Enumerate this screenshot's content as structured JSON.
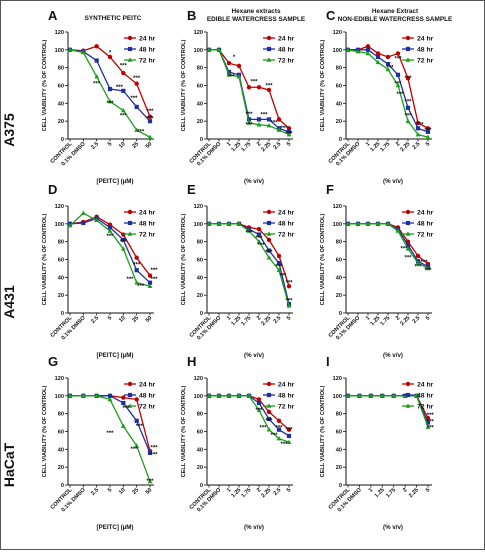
{
  "row_labels": [
    "A375",
    "A431",
    "HaCaT"
  ],
  "colors": {
    "24 hr": "#c00000",
    "48 hr": "#1f2f9f",
    "72 hr": "#1a9f1a"
  },
  "chart_data": [
    {
      "id": "A",
      "type": "line",
      "row": 0,
      "col": 0,
      "letter": "A",
      "title": "SYNTHETIC PEITC",
      "subtitle": "",
      "ylabel": "CELL VIABILITY (% OF CONTROL)",
      "xlabel": "[PEITC] (µM)",
      "ylim": [
        0,
        120
      ],
      "yticks": [
        0,
        20,
        40,
        60,
        80,
        100,
        120
      ],
      "categories": [
        "CONTROL",
        "0.1% DMSO",
        "2.5",
        "5",
        "10",
        "25",
        "50"
      ],
      "series": [
        {
          "name": "24 hr",
          "marker": "circle",
          "values": [
            100,
            99,
            104,
            92,
            74,
            62,
            25
          ]
        },
        {
          "name": "48 hr",
          "marker": "square",
          "values": [
            100,
            98,
            88,
            56,
            54,
            36,
            20
          ]
        },
        {
          "name": "72 hr",
          "marker": "triangle",
          "values": [
            100,
            97,
            70,
            42,
            32,
            10,
            2
          ]
        }
      ],
      "annotations": [
        {
          "label": "*",
          "x": 3,
          "y": 95
        },
        {
          "label": "***",
          "x": 4,
          "y": 80
        },
        {
          "label": "***",
          "x": 5,
          "y": 66
        },
        {
          "label": "***",
          "x": 6,
          "y": 29
        },
        {
          "label": "***",
          "x": 2,
          "y": 60
        },
        {
          "label": "***",
          "x": 3.7,
          "y": 56
        },
        {
          "label": "***",
          "x": 4.8,
          "y": 44
        },
        {
          "label": "***",
          "x": 6,
          "y": 21
        },
        {
          "label": "***",
          "x": 3,
          "y": 38
        },
        {
          "label": "***",
          "x": 4,
          "y": 24
        },
        {
          "label": "***",
          "x": 5.3,
          "y": 6
        }
      ]
    },
    {
      "id": "B",
      "type": "line",
      "row": 0,
      "col": 1,
      "letter": "B",
      "title": "Hexane extracts",
      "subtitle": "EDIBLE WATERCRESS SAMPLE",
      "ylabel": "CELL VIABILITY (% OF CONTROL)",
      "xlabel": "(% v/v)",
      "ylim": [
        0,
        120
      ],
      "yticks": [
        0,
        20,
        40,
        60,
        80,
        100,
        120
      ],
      "categories": [
        "CONTROL",
        "0.1% DMSO",
        "1",
        "1.25",
        "1.75",
        "2",
        "2.25",
        "2.5",
        "5"
      ],
      "series": [
        {
          "name": "24 hr",
          "marker": "circle",
          "values": [
            100,
            100,
            85,
            82,
            58,
            58,
            55,
            22,
            12
          ]
        },
        {
          "name": "48 hr",
          "marker": "square",
          "values": [
            100,
            100,
            75,
            72,
            22,
            22,
            22,
            12,
            8
          ]
        },
        {
          "name": "72 hr",
          "marker": "triangle",
          "values": [
            100,
            100,
            72,
            70,
            18,
            16,
            15,
            10,
            5
          ]
        }
      ],
      "annotations": [
        {
          "label": "*",
          "x": 2.5,
          "y": 90
        },
        {
          "label": "***",
          "x": 4.5,
          "y": 62
        },
        {
          "label": "***",
          "x": 6,
          "y": 58
        },
        {
          "label": "***",
          "x": 2.2,
          "y": 68
        },
        {
          "label": "***",
          "x": 4,
          "y": 26
        },
        {
          "label": "***",
          "x": 5.5,
          "y": 25
        },
        {
          "label": "***",
          "x": 4,
          "y": 14
        },
        {
          "label": "***",
          "x": 6.5,
          "y": 16
        },
        {
          "label": "***",
          "x": 7.5,
          "y": 10
        },
        {
          "label": "***",
          "x": 8,
          "y": 4
        }
      ]
    },
    {
      "id": "C",
      "type": "line",
      "row": 0,
      "col": 2,
      "letter": "C",
      "title": "Hexane Extract",
      "subtitle": "NON-EDIBLE WATERCRESS SAMPLE",
      "ylabel": "CELL VIABILITY (% OF CONTROL)",
      "xlabel": "(% v/v)",
      "ylim": [
        0,
        120
      ],
      "yticks": [
        0,
        20,
        40,
        60,
        80,
        100,
        120
      ],
      "categories": [
        "CONTROL",
        "0.1% DMSO",
        "1",
        "1.25",
        "1.75",
        "2",
        "2.25",
        "2.5",
        "5"
      ],
      "series": [
        {
          "name": "24 hr",
          "marker": "circle",
          "values": [
            100,
            100,
            104,
            96,
            92,
            96,
            68,
            18,
            12
          ]
        },
        {
          "name": "48 hr",
          "marker": "square",
          "values": [
            100,
            100,
            100,
            92,
            84,
            72,
            35,
            12,
            8
          ]
        },
        {
          "name": "72 hr",
          "marker": "triangle",
          "values": [
            100,
            98,
            96,
            86,
            78,
            60,
            20,
            5,
            2
          ]
        }
      ],
      "annotations": [
        {
          "label": "***",
          "x": 5,
          "y": 88
        },
        {
          "label": "***",
          "x": 6,
          "y": 66
        },
        {
          "label": "***",
          "x": 4.2,
          "y": 78
        },
        {
          "label": "***",
          "x": 5,
          "y": 60
        },
        {
          "label": "***",
          "x": 6,
          "y": 40
        },
        {
          "label": "***",
          "x": 5.2,
          "y": 48
        },
        {
          "label": "***",
          "x": 6,
          "y": 24
        },
        {
          "label": "***",
          "x": 7.2,
          "y": 14
        },
        {
          "label": "***",
          "x": 8,
          "y": 8
        }
      ]
    },
    {
      "id": "D",
      "type": "line",
      "row": 1,
      "col": 0,
      "letter": "D",
      "title": "",
      "subtitle": "",
      "ylabel": "CELL VIABILITY (% OF CONTROL)",
      "xlabel": "[PEITC] (µM)",
      "ylim": [
        0,
        120
      ],
      "yticks": [
        0,
        20,
        40,
        60,
        80,
        100,
        120
      ],
      "categories": [
        "CONTROL",
        "0.1% DMSO",
        "2.5",
        "5",
        "10",
        "25",
        "50"
      ],
      "series": [
        {
          "name": "24 hr",
          "marker": "circle",
          "values": [
            100,
            102,
            108,
            99,
            88,
            62,
            42
          ]
        },
        {
          "name": "48 hr",
          "marker": "square",
          "values": [
            100,
            101,
            106,
            96,
            82,
            48,
            34
          ]
        },
        {
          "name": "72 hr",
          "marker": "triangle",
          "values": [
            98,
            112,
            104,
            92,
            72,
            34,
            30
          ]
        }
      ],
      "annotations": [
        {
          "label": "***",
          "x": 6.3,
          "y": 46
        },
        {
          "label": "***",
          "x": 6.3,
          "y": 36
        },
        {
          "label": "***",
          "x": 5,
          "y": 52
        },
        {
          "label": "***",
          "x": 4,
          "y": 78
        },
        {
          "label": "***",
          "x": 3,
          "y": 84
        },
        {
          "label": "***",
          "x": 4.5,
          "y": 36
        },
        {
          "label": "***",
          "x": 5.3,
          "y": 28
        }
      ]
    },
    {
      "id": "E",
      "type": "line",
      "row": 1,
      "col": 1,
      "letter": "E",
      "title": "",
      "subtitle": "",
      "ylabel": "CELL VIABILITY (% OF CONTROL)",
      "xlabel": "(% v/v)",
      "ylim": [
        0,
        120
      ],
      "yticks": [
        0,
        20,
        40,
        60,
        80,
        100,
        120
      ],
      "categories": [
        "CONTROL",
        "0.1% DMSO",
        "1",
        "1.25",
        "1.75",
        "2",
        "2.25",
        "2.5",
        "5"
      ],
      "series": [
        {
          "name": "24 hr",
          "marker": "circle",
          "values": [
            100,
            100,
            100,
            100,
            96,
            94,
            82,
            64,
            30
          ]
        },
        {
          "name": "48 hr",
          "marker": "square",
          "values": [
            100,
            100,
            100,
            100,
            94,
            88,
            70,
            56,
            10
          ]
        },
        {
          "name": "72 hr",
          "marker": "triangle",
          "values": [
            100,
            100,
            100,
            100,
            92,
            80,
            62,
            48,
            8
          ]
        }
      ],
      "annotations": [
        {
          "label": "***",
          "x": 4,
          "y": 88
        },
        {
          "label": "***",
          "x": 5,
          "y": 82
        },
        {
          "label": "***",
          "x": 5.2,
          "y": 74
        },
        {
          "label": "***",
          "x": 6,
          "y": 66
        },
        {
          "label": "***",
          "x": 7,
          "y": 50
        },
        {
          "label": "***",
          "x": 8,
          "y": 32
        },
        {
          "label": "***",
          "x": 8,
          "y": 12
        },
        {
          "label": "***",
          "x": 7.4,
          "y": 40
        }
      ]
    },
    {
      "id": "F",
      "type": "line",
      "row": 1,
      "col": 2,
      "letter": "F",
      "title": "",
      "subtitle": "",
      "ylabel": "CELL VIABILITY (% OF CONTROL)",
      "xlabel": "(% v/v)",
      "ylim": [
        0,
        120
      ],
      "yticks": [
        0,
        20,
        40,
        60,
        80,
        100,
        120
      ],
      "categories": [
        "CONTROL",
        "0.1% DMSO",
        "1",
        "1.25",
        "1.75",
        "2",
        "2.25",
        "2.5",
        "5"
      ],
      "series": [
        {
          "name": "24 hr",
          "marker": "circle",
          "values": [
            100,
            100,
            100,
            100,
            100,
            96,
            80,
            64,
            55
          ]
        },
        {
          "name": "48 hr",
          "marker": "square",
          "values": [
            100,
            100,
            100,
            100,
            100,
            94,
            76,
            58,
            52
          ]
        },
        {
          "name": "72 hr",
          "marker": "triangle",
          "values": [
            100,
            100,
            100,
            100,
            100,
            92,
            72,
            56,
            50
          ]
        }
      ],
      "annotations": [
        {
          "label": "***",
          "x": 5.6,
          "y": 70
        },
        {
          "label": "***",
          "x": 6,
          "y": 60
        },
        {
          "label": "***",
          "x": 7,
          "y": 50
        },
        {
          "label": "***",
          "x": 7.6,
          "y": 55
        },
        {
          "label": "***",
          "x": 8,
          "y": 46
        }
      ]
    },
    {
      "id": "G",
      "type": "line",
      "row": 2,
      "col": 0,
      "letter": "G",
      "title": "",
      "subtitle": "",
      "ylabel": "CELL VIABILITY (% OF CONTROL)",
      "xlabel": "[PEITC] (µM)",
      "ylim": [
        0,
        120
      ],
      "yticks": [
        0,
        20,
        40,
        60,
        80,
        100,
        120
      ],
      "categories": [
        "CONTROL",
        "0.1% DMSO",
        "2.5",
        "5",
        "10",
        "25",
        "50"
      ],
      "series": [
        {
          "name": "24 hr",
          "marker": "circle",
          "values": [
            100,
            100,
            100,
            100,
            98,
            96,
            38
          ]
        },
        {
          "name": "48 hr",
          "marker": "square",
          "values": [
            100,
            100,
            100,
            100,
            92,
            72,
            36
          ]
        },
        {
          "name": "72 hr",
          "marker": "triangle",
          "values": [
            100,
            100,
            100,
            96,
            66,
            44,
            4
          ]
        }
      ],
      "annotations": [
        {
          "label": "***",
          "x": 4.2,
          "y": 84
        },
        {
          "label": "***",
          "x": 5.2,
          "y": 64
        },
        {
          "label": "***",
          "x": 6.3,
          "y": 40
        },
        {
          "label": "***",
          "x": 6.3,
          "y": 32
        },
        {
          "label": "***",
          "x": 3,
          "y": 56
        },
        {
          "label": "***",
          "x": 4.8,
          "y": 38
        },
        {
          "label": "***",
          "x": 6,
          "y": 2
        }
      ]
    },
    {
      "id": "H",
      "type": "line",
      "row": 2,
      "col": 1,
      "letter": "H",
      "title": "",
      "subtitle": "",
      "ylabel": "CELL VIABILITY (% OF CONTROL)",
      "xlabel": "(% v/v)",
      "ylim": [
        0,
        120
      ],
      "yticks": [
        0,
        20,
        40,
        60,
        80,
        100,
        120
      ],
      "categories": [
        "CONTROL",
        "0.1% DMSO",
        "1",
        "1.25",
        "1.75",
        "2",
        "2.25",
        "2.5",
        "5"
      ],
      "series": [
        {
          "name": "24 hr",
          "marker": "circle",
          "values": [
            100,
            100,
            100,
            100,
            100,
            96,
            82,
            72,
            62
          ]
        },
        {
          "name": "48 hr",
          "marker": "square",
          "values": [
            100,
            100,
            100,
            100,
            100,
            92,
            74,
            62,
            55
          ]
        },
        {
          "name": "72 hr",
          "marker": "triangle",
          "values": [
            100,
            100,
            100,
            100,
            100,
            84,
            62,
            52,
            48
          ]
        }
      ],
      "annotations": [
        {
          "label": "***",
          "x": 5,
          "y": 82
        },
        {
          "label": "***",
          "x": 6,
          "y": 70
        },
        {
          "label": "***",
          "x": 7,
          "y": 62
        },
        {
          "label": "***",
          "x": 6.5,
          "y": 54
        },
        {
          "label": "***",
          "x": 7.5,
          "y": 44
        },
        {
          "label": "***",
          "x": 8,
          "y": 60
        },
        {
          "label": "***",
          "x": 5.4,
          "y": 62
        }
      ]
    },
    {
      "id": "I",
      "type": "line",
      "row": 2,
      "col": 2,
      "letter": "I",
      "title": "",
      "subtitle": "",
      "ylabel": "CELL VIABILITY (% OF CONTROL)",
      "xlabel": "(% v/v)",
      "ylim": [
        0,
        120
      ],
      "yticks": [
        0,
        20,
        40,
        60,
        80,
        100,
        120
      ],
      "categories": [
        "CONTROL",
        "0.1% DMSO",
        "1",
        "1.25",
        "1.75",
        "2",
        "2.25",
        "5"
      ],
      "series": [
        {
          "name": "24 hr",
          "marker": "circle",
          "values": [
            100,
            100,
            100,
            100,
            100,
            100,
            100,
            75
          ]
        },
        {
          "name": "48 hr",
          "marker": "square",
          "values": [
            100,
            100,
            100,
            100,
            100,
            100,
            100,
            70
          ]
        },
        {
          "name": "72 hr",
          "marker": "triangle",
          "values": [
            100,
            100,
            100,
            100,
            100,
            100,
            100,
            65
          ]
        }
      ],
      "annotations": [
        {
          "label": "***",
          "x": 7.2,
          "y": 76
        },
        {
          "label": "***",
          "x": 7.2,
          "y": 69
        },
        {
          "label": "***",
          "x": 7.2,
          "y": 62
        }
      ]
    }
  ]
}
